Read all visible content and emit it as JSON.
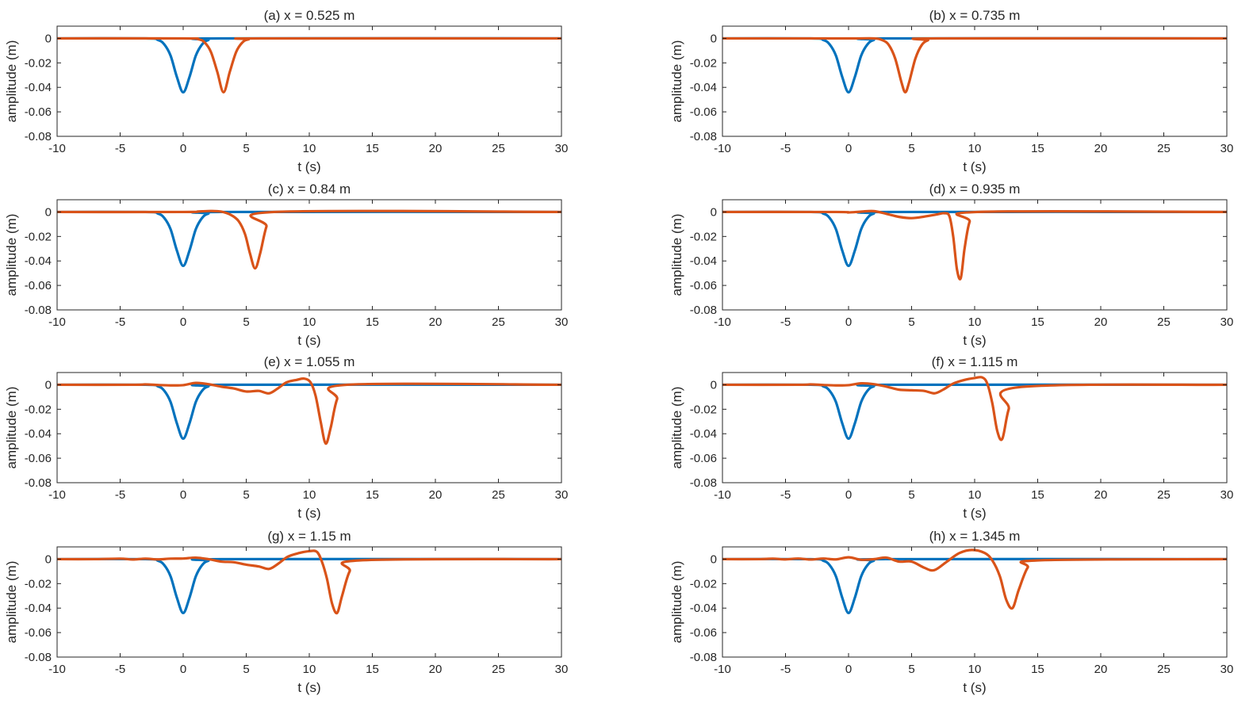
{
  "figure": {
    "xlabel": "t (s)",
    "ylabel": "amplitude (m)",
    "colors": {
      "incident": "#0072BD",
      "measured": "#D95319",
      "axis": "#262626"
    }
  },
  "chart_data": [
    {
      "type": "line",
      "title": "(a)  x = 0.525 m",
      "xlabel": "t (s)",
      "ylabel": "amplitude (m)",
      "xlim": [
        -10,
        30
      ],
      "ylim": [
        -0.08,
        0.01
      ],
      "xticks": [
        -10,
        -5,
        0,
        5,
        10,
        15,
        20,
        25,
        30
      ],
      "yticks": [
        0,
        -0.02,
        -0.04,
        -0.06,
        -0.08
      ],
      "yticklabels": [
        "0",
        "-0.02",
        "-0.04",
        "-0.06",
        "-0.08"
      ],
      "series": [
        {
          "color": "#0072BD",
          "x": [
            -10,
            -3,
            -2,
            -1.5,
            -1,
            -0.5,
            0,
            0.5,
            1,
            1.5,
            2,
            3,
            30
          ],
          "y": [
            0,
            0,
            -0.0013,
            -0.0049,
            -0.0141,
            -0.0315,
            -0.044,
            -0.0315,
            -0.0141,
            -0.0049,
            -0.0013,
            0,
            0
          ]
        },
        {
          "color": "#D95319",
          "x": [
            -10,
            0,
            1.2,
            1.7,
            2.2,
            2.7,
            3.2,
            3.7,
            4.2,
            4.7,
            5.2,
            6.2,
            30
          ],
          "y": [
            0,
            0,
            -0.0007,
            -0.0033,
            -0.0111,
            -0.0272,
            -0.044,
            -0.0272,
            -0.0111,
            -0.0033,
            -0.0007,
            0,
            0
          ]
        }
      ]
    },
    {
      "type": "line",
      "title": "(b)  x = 0.735 m",
      "xlabel": "t (s)",
      "ylabel": "amplitude (m)",
      "xlim": [
        -10,
        30
      ],
      "ylim": [
        -0.08,
        0.01
      ],
      "xticks": [
        -10,
        -5,
        0,
        5,
        10,
        15,
        20,
        25,
        30
      ],
      "yticks": [
        0,
        -0.02,
        -0.04,
        -0.06,
        -0.08
      ],
      "yticklabels": [
        "0",
        "-0.02",
        "-0.04",
        "-0.06",
        "-0.08"
      ],
      "series": [
        {
          "color": "#0072BD",
          "x": [
            -10,
            -3,
            -2,
            -1.5,
            -1,
            -0.5,
            0,
            0.5,
            1,
            1.5,
            2,
            3,
            30
          ],
          "y": [
            0,
            0,
            -0.0013,
            -0.0049,
            -0.0141,
            -0.0315,
            -0.044,
            -0.0315,
            -0.0141,
            -0.0049,
            -0.0013,
            0,
            0
          ]
        },
        {
          "color": "#D95319",
          "x": [
            -10,
            0,
            2,
            2.7,
            3.2,
            3.7,
            4.2,
            4.5,
            4.8,
            5.3,
            5.8,
            6.3,
            7,
            30
          ],
          "y": [
            0,
            0,
            0,
            -0.0015,
            -0.0055,
            -0.0165,
            -0.036,
            -0.044,
            -0.036,
            -0.0165,
            -0.0055,
            -0.0015,
            0,
            0
          ]
        }
      ]
    },
    {
      "type": "line",
      "title": "(c)  x = 0.84 m",
      "xlabel": "t (s)",
      "ylabel": "amplitude (m)",
      "xlim": [
        -10,
        30
      ],
      "ylim": [
        -0.08,
        0.01
      ],
      "xticks": [
        -10,
        -5,
        0,
        5,
        10,
        15,
        20,
        25,
        30
      ],
      "yticks": [
        0,
        -0.02,
        -0.04,
        -0.06,
        -0.08
      ],
      "yticklabels": [
        "0",
        "-0.02",
        "-0.04",
        "-0.06",
        "-0.08"
      ],
      "series": [
        {
          "color": "#0072BD",
          "x": [
            -10,
            -3,
            -2,
            -1.5,
            -1,
            -0.5,
            0,
            0.5,
            1,
            1.5,
            2,
            3,
            30
          ],
          "y": [
            0,
            0,
            -0.0013,
            -0.0049,
            -0.0141,
            -0.0315,
            -0.044,
            -0.0315,
            -0.0141,
            -0.0049,
            -0.0013,
            0,
            0
          ]
        },
        {
          "color": "#D95319",
          "x": [
            -10,
            0,
            1.2,
            2.2,
            3,
            3.8,
            4.4,
            4.9,
            5.3,
            5.7,
            6.1,
            6.6,
            7.2,
            30
          ],
          "y": [
            0,
            0,
            0.0004,
            0.0008,
            0.0003,
            -0.0025,
            -0.0075,
            -0.018,
            -0.034,
            -0.046,
            -0.034,
            -0.012,
            0,
            0
          ]
        }
      ]
    },
    {
      "type": "line",
      "title": "(d)  x = 0.935 m",
      "xlabel": "t (s)",
      "ylabel": "amplitude (m)",
      "xlim": [
        -10,
        30
      ],
      "ylim": [
        -0.08,
        0.01
      ],
      "xticks": [
        -10,
        -5,
        0,
        5,
        10,
        15,
        20,
        25,
        30
      ],
      "yticks": [
        0,
        -0.02,
        -0.04,
        -0.06,
        -0.08
      ],
      "yticklabels": [
        "0",
        "-0.02",
        "-0.04",
        "-0.06",
        "-0.08"
      ],
      "series": [
        {
          "color": "#0072BD",
          "x": [
            -10,
            -3,
            -2,
            -1.5,
            -1,
            -0.5,
            0,
            0.5,
            1,
            1.5,
            2,
            3,
            30
          ],
          "y": [
            0,
            0,
            -0.0013,
            -0.0049,
            -0.0141,
            -0.0315,
            -0.044,
            -0.0315,
            -0.0141,
            -0.0049,
            -0.0013,
            0,
            0
          ]
        },
        {
          "color": "#D95319",
          "x": [
            -10,
            -1,
            0,
            1,
            2,
            3,
            4,
            5,
            6,
            7,
            7.6,
            8,
            8.3,
            8.6,
            8.9,
            9.2,
            9.6,
            10.2,
            30
          ],
          "y": [
            0,
            0,
            -0.0004,
            0.0003,
            0.0007,
            -0.0015,
            -0.004,
            -0.005,
            -0.0038,
            -0.002,
            -0.001,
            -0.0035,
            -0.02,
            -0.047,
            -0.054,
            -0.03,
            -0.008,
            0,
            0
          ]
        }
      ]
    },
    {
      "type": "line",
      "title": "(e)  x = 1.055 m",
      "xlabel": "t (s)",
      "ylabel": "amplitude (m)",
      "xlim": [
        -10,
        30
      ],
      "ylim": [
        -0.08,
        0.01
      ],
      "xticks": [
        -10,
        -5,
        0,
        5,
        10,
        15,
        20,
        25,
        30
      ],
      "yticks": [
        0,
        -0.02,
        -0.04,
        -0.06,
        -0.08
      ],
      "yticklabels": [
        "0",
        "-0.02",
        "-0.04",
        "-0.06",
        "-0.08"
      ],
      "series": [
        {
          "color": "#0072BD",
          "x": [
            -10,
            -3,
            -2,
            -1.5,
            -1,
            -0.5,
            0,
            0.5,
            1,
            1.5,
            2,
            3,
            30
          ],
          "y": [
            0,
            0,
            -0.0013,
            -0.0049,
            -0.0141,
            -0.0315,
            -0.044,
            -0.0315,
            -0.0141,
            -0.0049,
            -0.0013,
            0,
            0
          ]
        },
        {
          "color": "#D95319",
          "x": [
            -10,
            -4,
            -3,
            -2,
            -1,
            0,
            1,
            2,
            3,
            4,
            5,
            6,
            6.8,
            7.5,
            8.2,
            9,
            9.6,
            10.1,
            10.5,
            10.9,
            11.3,
            11.7,
            12.2,
            13,
            30
          ],
          "y": [
            0,
            0,
            0.0003,
            -0.0002,
            -0.0005,
            -0.0003,
            0.0015,
            0.0005,
            -0.0015,
            -0.003,
            -0.0055,
            -0.005,
            -0.007,
            -0.003,
            0.002,
            0.004,
            0.005,
            0.002,
            -0.009,
            -0.03,
            -0.048,
            -0.035,
            -0.012,
            0,
            0
          ]
        }
      ]
    },
    {
      "type": "line",
      "title": "(f)  x = 1.115 m",
      "xlabel": "t (s)",
      "ylabel": "amplitude (m)",
      "xlim": [
        -10,
        30
      ],
      "ylim": [
        -0.08,
        0.01
      ],
      "xticks": [
        -10,
        -5,
        0,
        5,
        10,
        15,
        20,
        25,
        30
      ],
      "yticks": [
        0,
        -0.02,
        -0.04,
        -0.06,
        -0.08
      ],
      "yticklabels": [
        "0",
        "-0.02",
        "-0.04",
        "-0.06",
        "-0.08"
      ],
      "series": [
        {
          "color": "#0072BD",
          "x": [
            -10,
            -3,
            -2,
            -1.5,
            -1,
            -0.5,
            0,
            0.5,
            1,
            1.5,
            2,
            3,
            30
          ],
          "y": [
            0,
            0,
            -0.0013,
            -0.0049,
            -0.0141,
            -0.0315,
            -0.044,
            -0.0315,
            -0.0141,
            -0.0049,
            -0.0013,
            0,
            0
          ]
        },
        {
          "color": "#D95319",
          "x": [
            -10,
            -4,
            -3,
            -2,
            -1,
            0,
            1,
            2,
            3,
            4,
            5,
            6,
            6.8,
            7.5,
            8.3,
            9.2,
            10,
            10.6,
            11,
            11.4,
            11.8,
            12.2,
            12.7,
            13.5,
            30
          ],
          "y": [
            0,
            0,
            0.0003,
            -0.0002,
            -0.0005,
            -0.0003,
            0.0012,
            0.0005,
            -0.0015,
            -0.004,
            -0.0045,
            -0.005,
            -0.007,
            -0.004,
            0.001,
            0.004,
            0.0055,
            0.006,
            0.001,
            -0.015,
            -0.038,
            -0.044,
            -0.02,
            -0.002,
            0
          ]
        }
      ]
    },
    {
      "type": "line",
      "title": "(g)  x = 1.15 m",
      "xlabel": "t (s)",
      "ylabel": "amplitude (m)",
      "xlim": [
        -10,
        30
      ],
      "ylim": [
        -0.08,
        0.01
      ],
      "xticks": [
        -10,
        -5,
        0,
        5,
        10,
        15,
        20,
        25,
        30
      ],
      "yticks": [
        0,
        -0.02,
        -0.04,
        -0.06,
        -0.08
      ],
      "yticklabels": [
        "0",
        "-0.02",
        "-0.04",
        "-0.06",
        "-0.08"
      ],
      "series": [
        {
          "color": "#0072BD",
          "x": [
            -10,
            -3,
            -2,
            -1.5,
            -1,
            -0.5,
            0,
            0.5,
            1,
            1.5,
            2,
            3,
            30
          ],
          "y": [
            0,
            0,
            -0.0013,
            -0.0049,
            -0.0141,
            -0.0315,
            -0.044,
            -0.0315,
            -0.0141,
            -0.0049,
            -0.0013,
            0,
            0
          ]
        },
        {
          "color": "#D95319",
          "x": [
            -10,
            -7,
            -5,
            -4,
            -3,
            -2,
            -1,
            0,
            1,
            2,
            3,
            4,
            5,
            6,
            6.8,
            7.5,
            8.3,
            9.2,
            10,
            10.6,
            11,
            11.4,
            11.8,
            12.2,
            12.6,
            13.2,
            14,
            30
          ],
          "y": [
            0,
            0,
            0.0004,
            -0.0003,
            0.0004,
            -0.0002,
            0.0004,
            0.0005,
            0.0012,
            0,
            -0.002,
            -0.0025,
            -0.0045,
            -0.006,
            -0.008,
            -0.004,
            0.002,
            0.005,
            0.0065,
            0.006,
            -0.002,
            -0.016,
            -0.036,
            -0.044,
            -0.03,
            -0.01,
            -0.001,
            0
          ]
        }
      ]
    },
    {
      "type": "line",
      "title": "(h)  x = 1.345 m",
      "xlabel": "t (s)",
      "ylabel": "amplitude (m)",
      "xlim": [
        -10,
        30
      ],
      "ylim": [
        -0.08,
        0.01
      ],
      "xticks": [
        -10,
        -5,
        0,
        5,
        10,
        15,
        20,
        25,
        30
      ],
      "yticks": [
        0,
        -0.02,
        -0.04,
        -0.06,
        -0.08
      ],
      "yticklabels": [
        "0",
        "-0.02",
        "-0.04",
        "-0.06",
        "-0.08"
      ],
      "series": [
        {
          "color": "#0072BD",
          "x": [
            -10,
            -3,
            -2,
            -1.5,
            -1,
            -0.5,
            0,
            0.5,
            1,
            1.5,
            2,
            3,
            30
          ],
          "y": [
            0,
            0,
            -0.0013,
            -0.0049,
            -0.0141,
            -0.0315,
            -0.044,
            -0.0315,
            -0.0141,
            -0.0049,
            -0.0013,
            0,
            0
          ]
        },
        {
          "color": "#D95319",
          "x": [
            -10,
            -7,
            -6,
            -5,
            -4,
            -3,
            -2,
            -1,
            0,
            1,
            2,
            3,
            4,
            5,
            6,
            6.8,
            7.8,
            8.8,
            9.8,
            10.8,
            11.4,
            12,
            12.5,
            13,
            13.5,
            14.2,
            15,
            30
          ],
          "y": [
            0,
            0,
            0.0004,
            -0.0002,
            0.0005,
            -0.0003,
            0.0005,
            -0.0002,
            0.0015,
            -0.0005,
            0,
            0.0012,
            -0.002,
            -0.002,
            -0.007,
            -0.009,
            -0.002,
            0.005,
            0.0075,
            0.005,
            -0.001,
            -0.014,
            -0.033,
            -0.04,
            -0.025,
            -0.007,
            -0.001,
            0
          ]
        }
      ]
    }
  ]
}
